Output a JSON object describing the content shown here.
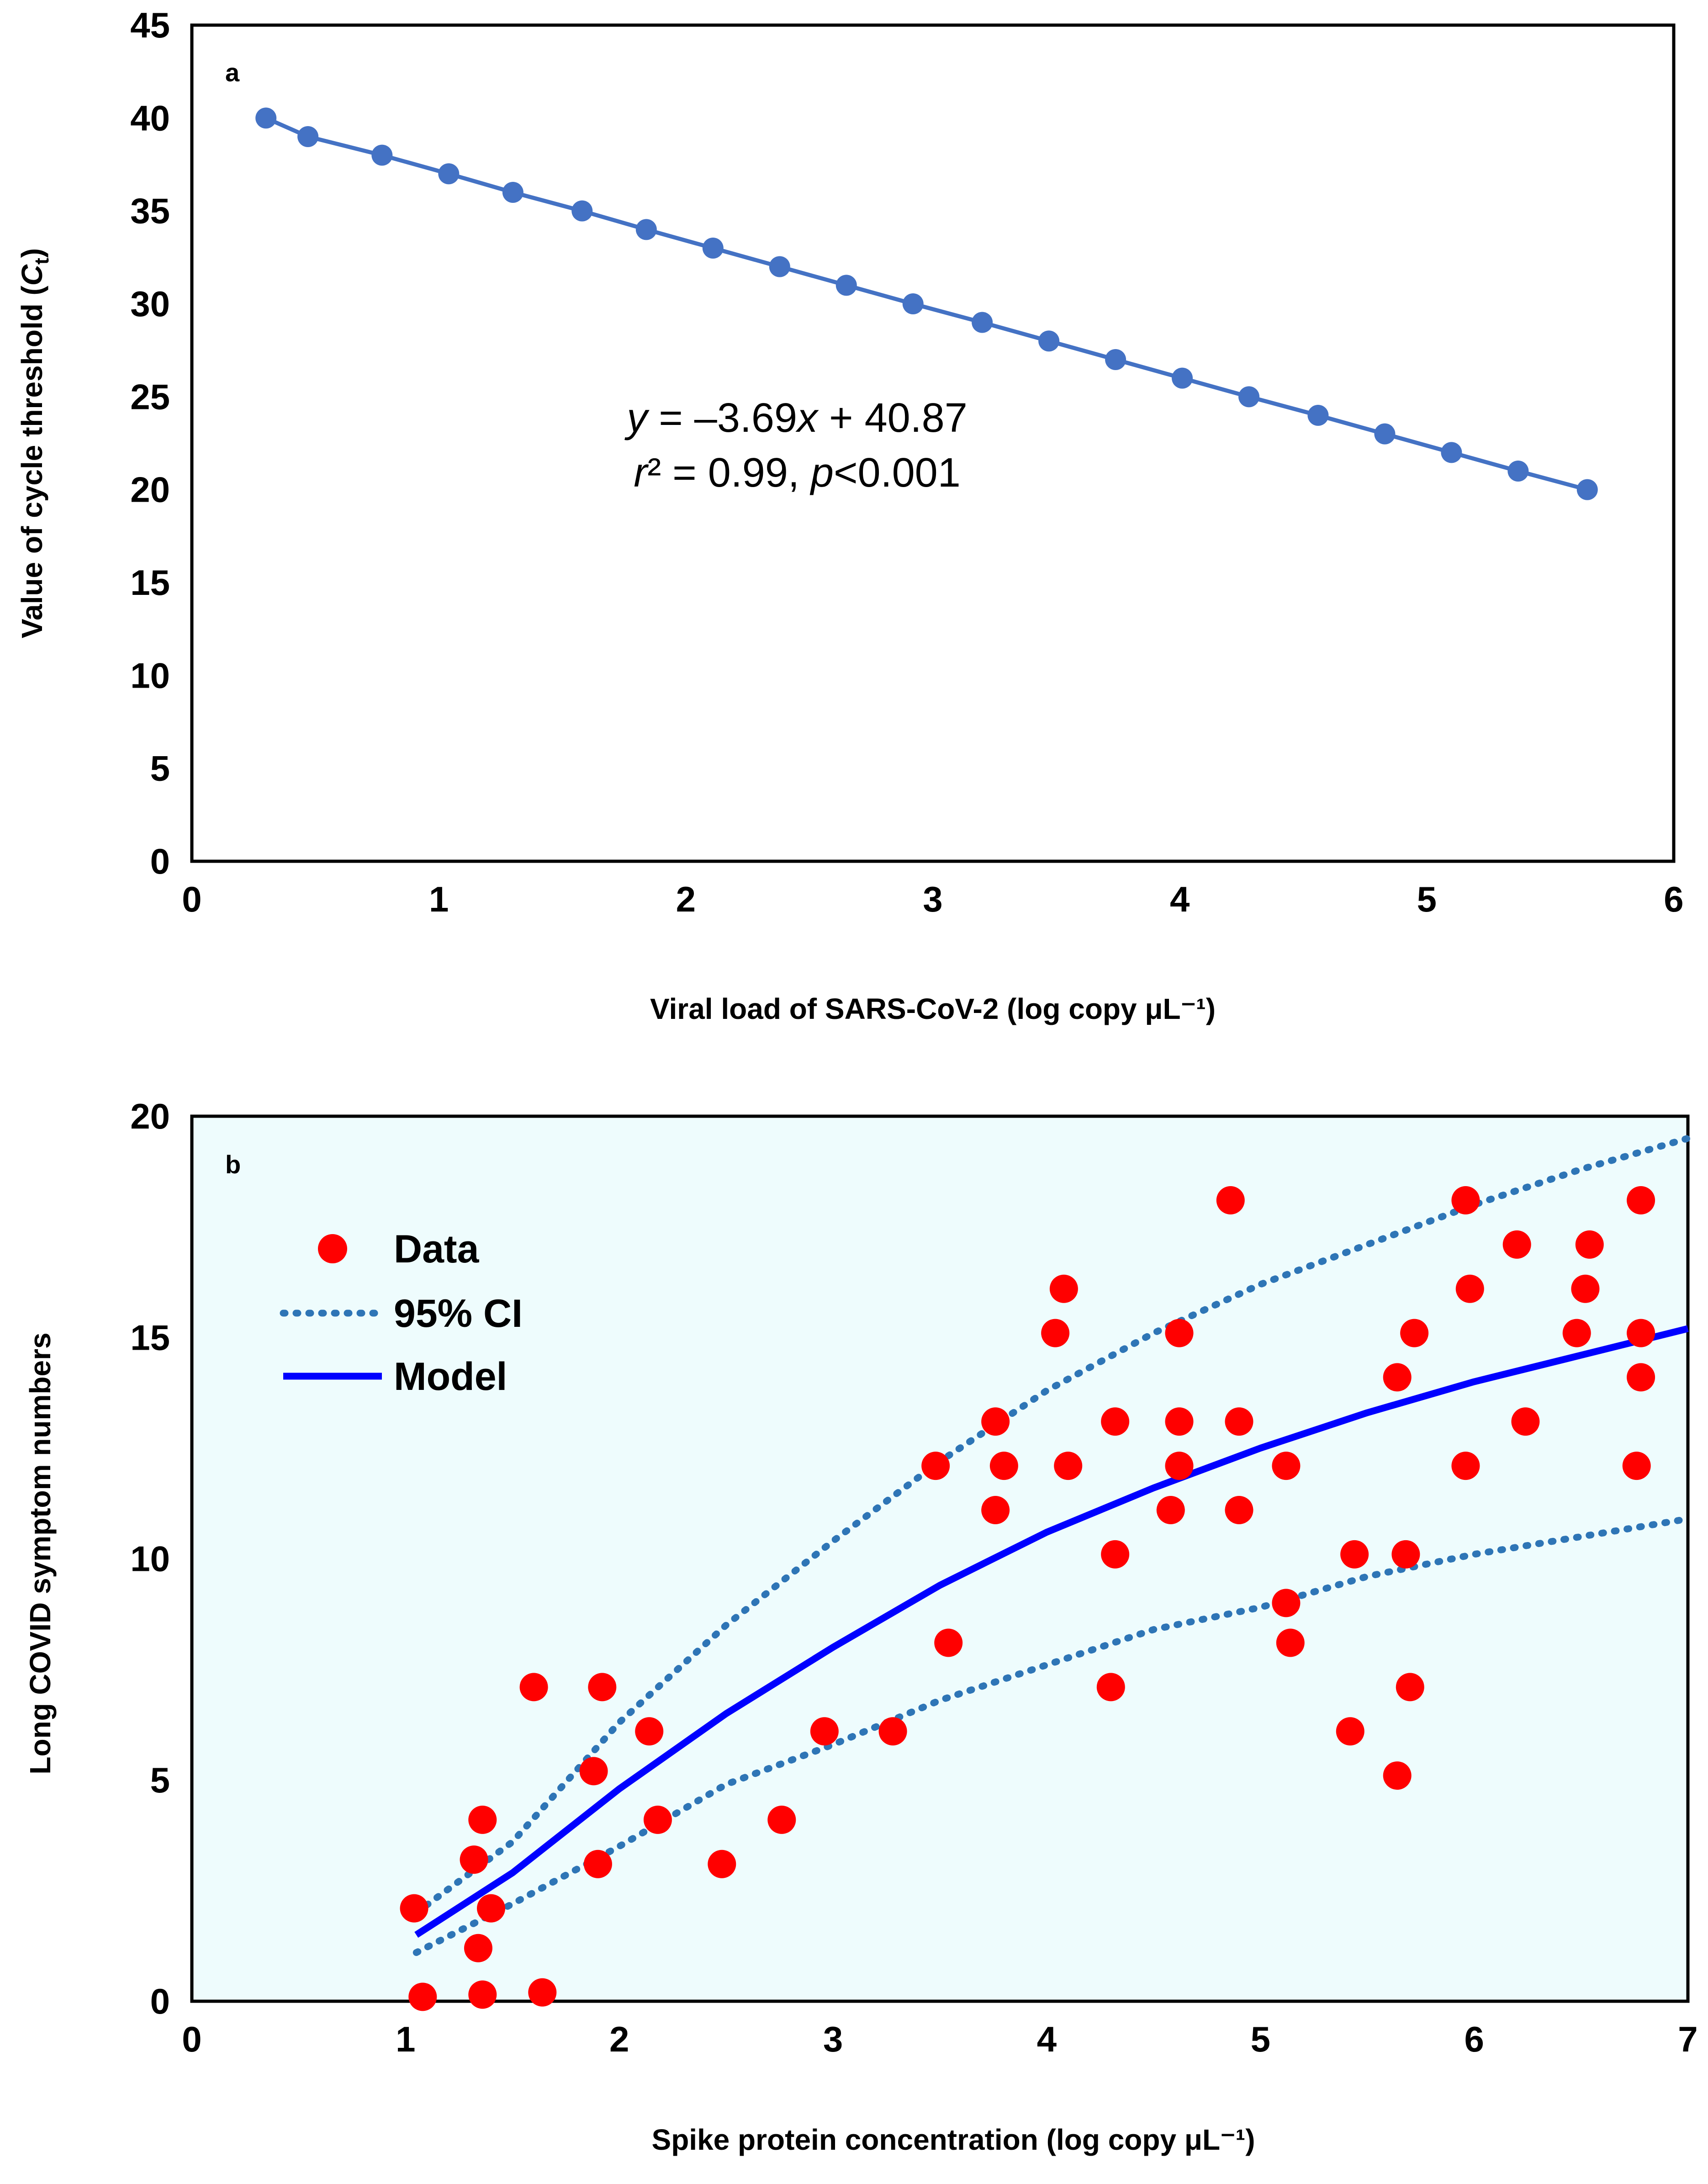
{
  "colors": {
    "panel_a_series": "#4472c4",
    "panel_b_background": "#eefcfd",
    "data_points": "#ff0000",
    "ci_lines": "#2e75b6",
    "model_line": "#0000ff",
    "frame": "#000000"
  },
  "chart_data": [
    {
      "panel": "a",
      "type": "line",
      "xlabel": "Viral load of SARS-CoV-2 (log copy μL⁻¹)",
      "ylabel_main": "Value of cycle threshold (",
      "ylabel_italic": "C",
      "ylabel_sub": "t",
      "ylabel_end": ")",
      "xlim": [
        0,
        6
      ],
      "ylim": [
        0,
        45
      ],
      "xticks": [
        "0",
        "1",
        "2",
        "3",
        "4",
        "5",
        "6"
      ],
      "yticks": [
        "0",
        "5",
        "10",
        "15",
        "20",
        "25",
        "30",
        "35",
        "40",
        "45"
      ],
      "equation": {
        "y_var": "y",
        "eq_mid": " = –3.69",
        "x_var": "x",
        "eq_end": " + 40.87",
        "r_var": "r",
        "r_end": "² = 0.99, ",
        "p_var": "p",
        "p_end": "<0.001"
      },
      "series": [
        {
          "name": "Ct",
          "x": [
            0.3,
            0.47,
            0.77,
            1.04,
            1.3,
            1.58,
            1.84,
            2.11,
            2.38,
            2.65,
            2.92,
            3.2,
            3.47,
            3.74,
            4.01,
            4.28,
            4.56,
            4.83,
            5.1,
            5.37,
            5.65
          ],
          "y": [
            40,
            39,
            38,
            37,
            36,
            35,
            34,
            33,
            32,
            31,
            30,
            29,
            28,
            27,
            26,
            25,
            24,
            23,
            22,
            21,
            20
          ]
        }
      ]
    },
    {
      "panel": "b",
      "type": "scatter",
      "xlabel": "Spike protein concentration (log copy μL⁻¹)",
      "ylabel": "Long COVID symptom numbers",
      "xlim": [
        0,
        7
      ],
      "ylim": [
        0,
        20
      ],
      "xticks": [
        "0",
        "1",
        "2",
        "3",
        "4",
        "5",
        "6",
        "7"
      ],
      "yticks": [
        "0",
        "5",
        "10",
        "15",
        "20"
      ],
      "legend": {
        "position": "top-left",
        "data": "Data",
        "ci": "95% CI",
        "model": "Model"
      },
      "series": [
        {
          "name": "Data",
          "points": [
            [
              1.04,
              2.1
            ],
            [
              1.08,
              0.1
            ],
            [
              1.32,
              3.2
            ],
            [
              1.34,
              1.2
            ],
            [
              1.36,
              4.1
            ],
            [
              1.36,
              0.15
            ],
            [
              1.4,
              2.1
            ],
            [
              1.64,
              0.2
            ],
            [
              1.6,
              7.1
            ],
            [
              1.88,
              5.2
            ],
            [
              1.9,
              3.1
            ],
            [
              1.92,
              7.1
            ],
            [
              2.14,
              6.1
            ],
            [
              2.18,
              4.1
            ],
            [
              2.48,
              3.1
            ],
            [
              2.76,
              4.1
            ],
            [
              2.96,
              6.1
            ],
            [
              3.28,
              6.1
            ],
            [
              3.48,
              12.1
            ],
            [
              3.54,
              8.1
            ],
            [
              3.76,
              13.1
            ],
            [
              3.76,
              11.1
            ],
            [
              3.8,
              12.1
            ],
            [
              4.04,
              15.1
            ],
            [
              4.08,
              16.1
            ],
            [
              4.1,
              12.1
            ],
            [
              4.3,
              7.1
            ],
            [
              4.32,
              13.1
            ],
            [
              4.32,
              10.1
            ],
            [
              4.58,
              11.1
            ],
            [
              4.62,
              15.1
            ],
            [
              4.62,
              13.1
            ],
            [
              4.62,
              12.1
            ],
            [
              4.86,
              18.1
            ],
            [
              4.9,
              13.1
            ],
            [
              4.9,
              11.1
            ],
            [
              5.12,
              12.1
            ],
            [
              5.12,
              9.0
            ],
            [
              5.14,
              8.1
            ],
            [
              5.42,
              6.1
            ],
            [
              5.44,
              10.1
            ],
            [
              5.64,
              14.1
            ],
            [
              5.64,
              5.1
            ],
            [
              5.68,
              10.1
            ],
            [
              5.7,
              7.1
            ],
            [
              5.72,
              15.1
            ],
            [
              5.96,
              18.1
            ],
            [
              5.96,
              12.1
            ],
            [
              5.98,
              16.1
            ],
            [
              6.2,
              17.1
            ],
            [
              6.24,
              13.1
            ],
            [
              6.48,
              15.1
            ],
            [
              6.52,
              16.1
            ],
            [
              6.54,
              17.1
            ],
            [
              6.76,
              12.1
            ],
            [
              6.78,
              18.1
            ],
            [
              6.78,
              15.1
            ],
            [
              6.78,
              14.1
            ]
          ]
        },
        {
          "name": "Model",
          "x": [
            1.05,
            1.5,
            2.0,
            2.5,
            3.0,
            3.5,
            4.0,
            4.5,
            5.0,
            5.5,
            6.0,
            6.5,
            7.0
          ],
          "y": [
            1.5,
            2.9,
            4.8,
            6.5,
            8.0,
            9.4,
            10.6,
            11.6,
            12.5,
            13.3,
            14.0,
            14.6,
            15.2
          ]
        },
        {
          "name": "95% CI upper",
          "x": [
            1.05,
            1.5,
            2.0,
            2.5,
            3.0,
            3.5,
            4.0,
            4.5,
            5.0,
            5.5,
            6.0,
            6.5,
            7.0
          ],
          "y": [
            2.0,
            3.6,
            6.3,
            8.5,
            10.4,
            12.2,
            13.8,
            15.1,
            16.2,
            17.1,
            18.0,
            18.8,
            19.5
          ]
        },
        {
          "name": "95% CI lower",
          "x": [
            1.05,
            1.5,
            2.0,
            2.5,
            3.0,
            3.5,
            4.0,
            4.5,
            5.0,
            5.5,
            6.0,
            6.5,
            7.0
          ],
          "y": [
            1.1,
            2.2,
            3.5,
            4.9,
            5.8,
            6.8,
            7.6,
            8.4,
            8.9,
            9.6,
            10.1,
            10.5,
            10.9
          ]
        }
      ]
    }
  ]
}
